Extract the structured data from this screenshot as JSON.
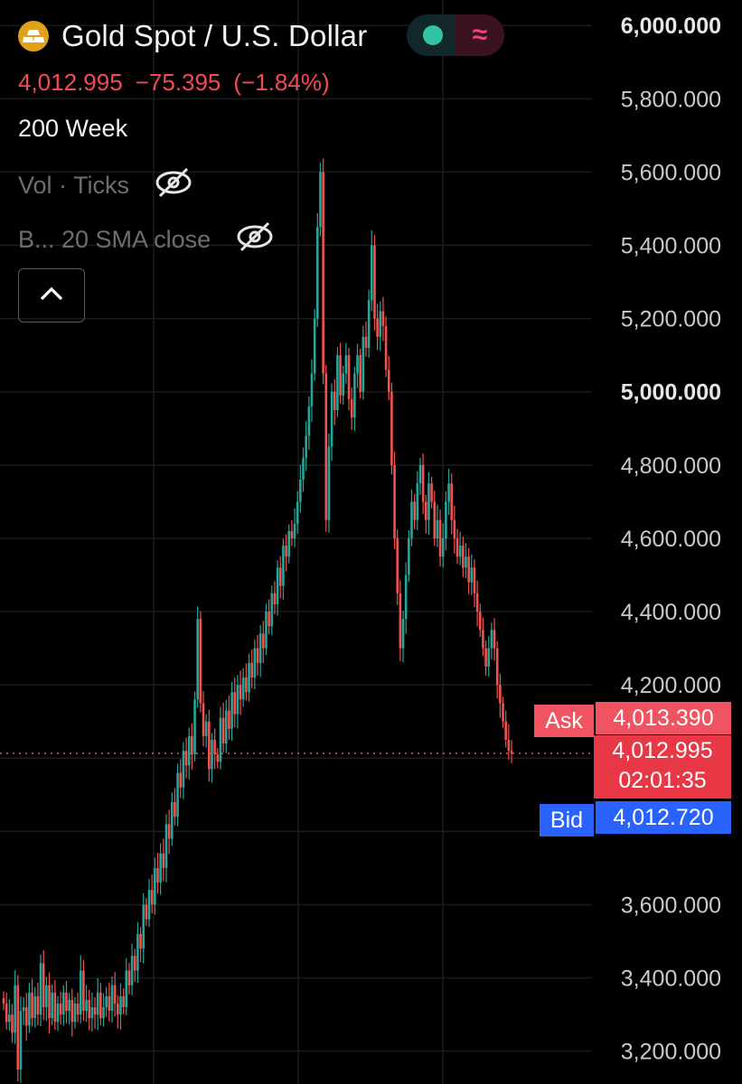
{
  "header": {
    "symbol_title": "Gold Spot / U.S. Dollar",
    "logo_icon": "gold-bars-icon",
    "status_icon": "market-open-dot-icon",
    "wave_icon": "waves-icon",
    "last_price": "4,012.995",
    "change": "−75.395",
    "change_pct": "(−1.84%)",
    "timeframe": "200 Week"
  },
  "indicators": [
    {
      "label": "Vol · Ticks",
      "icon": "eye-hidden-icon"
    },
    {
      "label": "B... 20 SMA close",
      "icon": "eye-hidden-icon"
    }
  ],
  "collapse_icon": "chevron-up-icon",
  "price_axis": {
    "labels": [
      "6,000.000",
      "5,800.000",
      "5,600.000",
      "5,400.000",
      "5,200.000",
      "5,000.000",
      "4,800.000",
      "4,600.000",
      "4,400.000",
      "4,200.000",
      "3,600.000",
      "3,400.000",
      "3,200.000"
    ],
    "bold_labels": [
      "6,000.000",
      "5,000.000"
    ]
  },
  "ask": {
    "label": "Ask",
    "value": "4,013.390"
  },
  "current": {
    "value": "4,012.995",
    "countdown": "02:01:35"
  },
  "bid": {
    "label": "Bid",
    "value": "4,012.720"
  },
  "colors": {
    "up": "#26a69a",
    "down": "#ef5350",
    "ask": "#f05361",
    "bid": "#2962ff",
    "last": "#e83846"
  },
  "chart_data": {
    "type": "candlestick",
    "ylim": [
      3140,
      6040
    ],
    "last_price": 4012.995,
    "series": [
      {
        "values": [
          3330,
          3280,
          3300,
          3250,
          3380,
          3150,
          3310,
          3320,
          3270,
          3360,
          3290,
          3350,
          3300,
          3440,
          3320,
          3380,
          3290,
          3360,
          3280,
          3330,
          3300,
          3360,
          3310,
          3340,
          3280,
          3330,
          3300,
          3420,
          3310,
          3340,
          3290,
          3320,
          3300,
          3360,
          3290,
          3320,
          3350,
          3310,
          3380,
          3330,
          3300,
          3350,
          3320,
          3420,
          3380,
          3460,
          3420,
          3520,
          3480,
          3600,
          3560,
          3640,
          3600,
          3700,
          3660,
          3740,
          3700,
          3820,
          3780,
          3880,
          3840,
          3960,
          3920,
          4020,
          3980,
          4060,
          4010,
          4160,
          4380,
          4150,
          4060,
          4100,
          3970,
          4050,
          4010,
          3990,
          4110,
          4040,
          4130,
          4080,
          4180,
          4120,
          4200,
          4160,
          4220,
          4180,
          4260,
          4220,
          4300,
          4260,
          4340,
          4300,
          4400,
          4360,
          4450,
          4420,
          4520,
          4470,
          4580,
          4550,
          4620,
          4600,
          4640,
          4700,
          4760,
          4820,
          4880,
          4960,
          5050,
          5200,
          5450,
          5600,
          5050,
          4650,
          4850,
          5000,
          4950,
          5100,
          4990,
          5050,
          5100,
          4980,
          4930,
          5050,
          5100,
          5000,
          5150,
          5120,
          5250,
          5400,
          5200,
          5150,
          5220,
          5180,
          5060,
          5000,
          4800,
          4600,
          4450,
          4300,
          4380,
          4500,
          4600,
          4700,
          4650,
          4750,
          4800,
          4700,
          4650,
          4750,
          4700,
          4600,
          4650,
          4550,
          4600,
          4700,
          4750,
          4650,
          4600,
          4550,
          4580,
          4520,
          4550,
          4480,
          4520,
          4450,
          4400,
          4350,
          4300,
          4250,
          4300,
          4350,
          4300,
          4200,
          4150,
          4100,
          4050,
          4020,
          4013
        ]
      }
    ]
  }
}
